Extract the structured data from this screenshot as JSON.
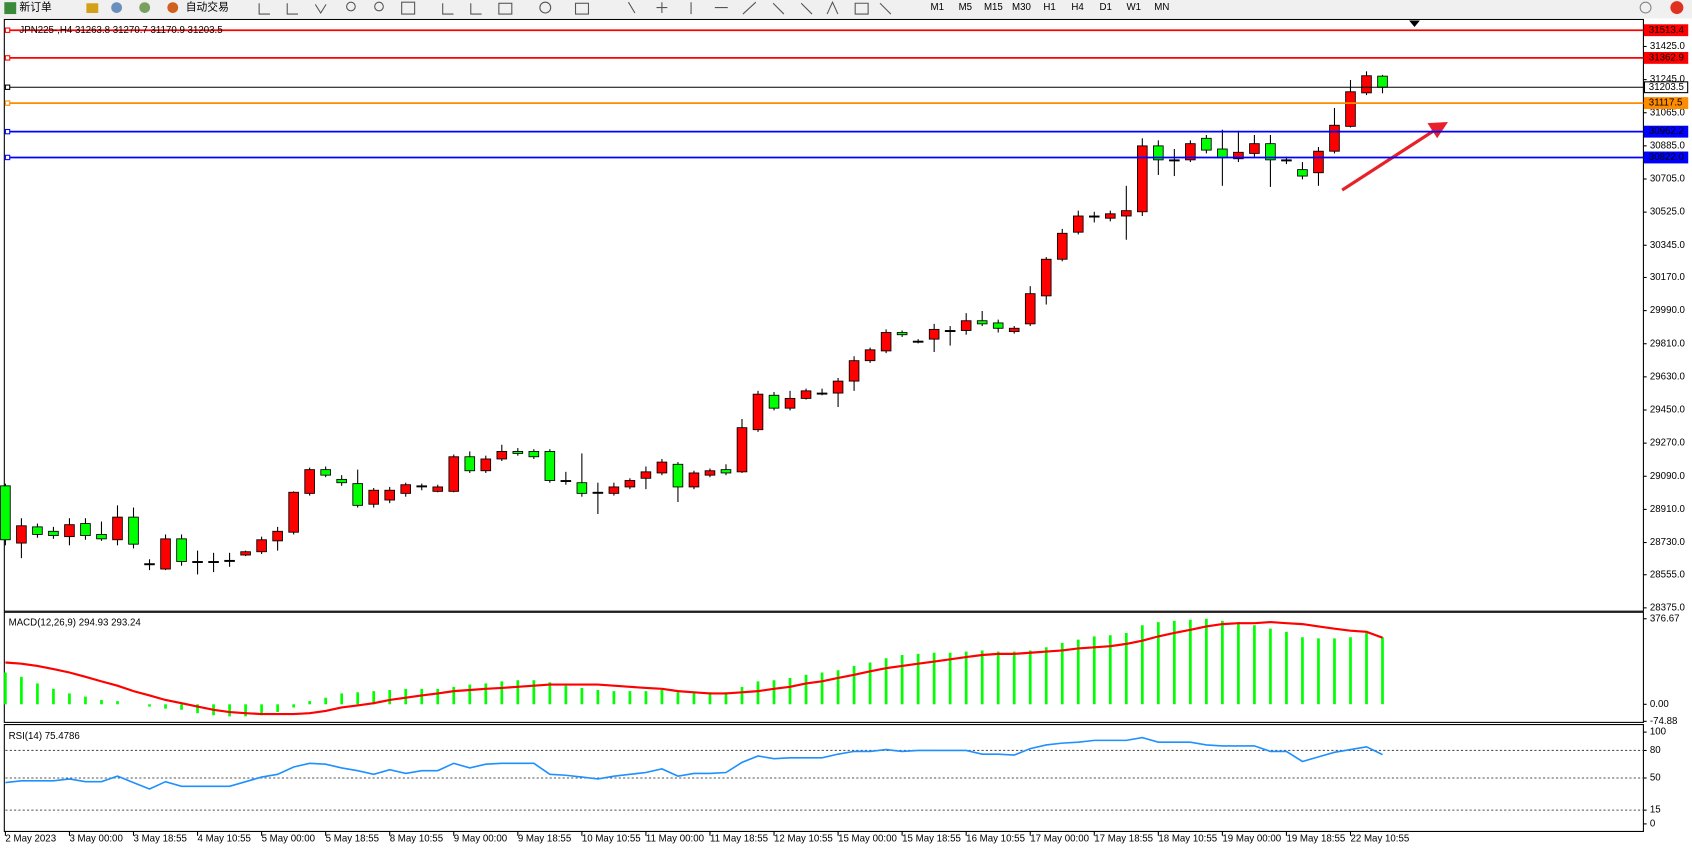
{
  "toolbar": {
    "buttons": [
      "新订单",
      "自动交易"
    ],
    "timeframes": [
      "M1",
      "M5",
      "M15",
      "M30",
      "H1",
      "H4",
      "D1",
      "W1",
      "MN"
    ]
  },
  "chart_data": [
    {
      "type": "candlestick",
      "title": "JPN225-,H4  31263.8 31270.7 31170.9 31203.5",
      "categories": [
        "2 May 2023",
        null,
        null,
        null,
        "3 May 00:00",
        null,
        null,
        null,
        "3 May 18:55",
        null,
        null,
        null,
        "4 May 10:55",
        null,
        null,
        null,
        "5 May 00:00",
        null,
        null,
        null,
        "5 May 18:55",
        null,
        null,
        null,
        "8 May 10:55",
        null,
        null,
        null,
        "9 May 00:00",
        null,
        null,
        null,
        "9 May 18:55",
        null,
        null,
        null,
        "10 May 10:55",
        null,
        null,
        null,
        "11 May 00:00",
        null,
        null,
        null,
        "11 May 18:55",
        null,
        null,
        null,
        "12 May 10:55",
        null,
        null,
        null,
        "15 May 00:00",
        null,
        null,
        null,
        "15 May 18:55",
        null,
        null,
        null,
        "16 May 10:55",
        null,
        null,
        null,
        "17 May 00:00",
        null,
        null,
        null,
        "17 May 18:55",
        null,
        null,
        null,
        "18 May 10:55",
        null,
        null,
        null,
        "19 May 00:00",
        null,
        null,
        null,
        "19 May 18:55",
        null,
        null,
        null,
        "22 May 10:55",
        null,
        null
      ],
      "open": [
        29038,
        28727,
        28815,
        28791,
        28762,
        28833,
        28774,
        28745,
        28868,
        28615,
        28586,
        28750,
        28627,
        28627,
        28633,
        28662,
        28680,
        28739,
        28786,
        28997,
        29126,
        29073,
        29050,
        28938,
        28961,
        28997,
        29038,
        29008,
        29008,
        29196,
        29120,
        29184,
        29225,
        29225,
        29225,
        29067,
        29055,
        29003,
        28997,
        29032,
        29079,
        29108,
        29155,
        29032,
        29096,
        29126,
        29114,
        29343,
        29530,
        29460,
        29513,
        29542,
        29542,
        29607,
        29718,
        29771,
        29871,
        29824,
        29835,
        29882,
        29882,
        29935,
        29923,
        29876,
        29918,
        30070,
        30269,
        30416,
        30504,
        30492,
        30504,
        30527,
        30885,
        30809,
        30809,
        30926,
        30868,
        30815,
        30844,
        30897,
        30809,
        30756,
        30739,
        30856,
        30991,
        31173,
        31263.8
      ],
      "high": [
        29050,
        28862,
        28833,
        28815,
        28862,
        28862,
        28844,
        28932,
        28920,
        28639,
        28774,
        28774,
        28686,
        28674,
        28674,
        28686,
        28762,
        28815,
        29008,
        29137,
        29143,
        29096,
        29126,
        29026,
        29032,
        29055,
        29050,
        29044,
        29208,
        29225,
        29202,
        29261,
        29243,
        29237,
        29237,
        29114,
        29214,
        29055,
        29055,
        29079,
        29143,
        29184,
        29167,
        29120,
        29132,
        29155,
        29401,
        29554,
        29548,
        29554,
        29566,
        29566,
        29624,
        29742,
        29789,
        29888,
        29882,
        29835,
        29918,
        29906,
        29976,
        29988,
        29941,
        29906,
        30123,
        30281,
        30434,
        30533,
        30527,
        30533,
        30668,
        30926,
        30915,
        30868,
        30915,
        30944,
        30973,
        30967,
        30944,
        30944,
        30827,
        30797,
        30879,
        31091,
        31243,
        31290,
        31270.7
      ],
      "low": [
        28715,
        28645,
        28756,
        28750,
        28715,
        28745,
        28739,
        28715,
        28698,
        28580,
        28580,
        28604,
        28557,
        28569,
        28598,
        28656,
        28668,
        28686,
        28774,
        28985,
        29085,
        29038,
        28920,
        28920,
        28944,
        28979,
        29014,
        29003,
        29003,
        29108,
        29108,
        29173,
        29202,
        29184,
        29055,
        29044,
        28979,
        28885,
        28985,
        29020,
        29020,
        29096,
        28950,
        29020,
        29085,
        29096,
        29108,
        29331,
        29448,
        29448,
        29507,
        29530,
        29466,
        29554,
        29706,
        29759,
        29847,
        29812,
        29765,
        29800,
        29859,
        29906,
        29871,
        29865,
        29906,
        30023,
        30258,
        30404,
        30469,
        30475,
        30375,
        30504,
        30727,
        30721,
        30797,
        30844,
        30668,
        30797,
        30827,
        30662,
        30786,
        30703,
        30668,
        30844,
        30985,
        31161,
        31170.9
      ],
      "close": [
        28745,
        28821,
        28774,
        28768,
        28827,
        28768,
        28750,
        28868,
        28721,
        28615,
        28750,
        28627,
        28627,
        28627,
        28633,
        28680,
        28745,
        28791,
        29003,
        29126,
        29096,
        29055,
        28932,
        29014,
        29014,
        29044,
        29038,
        29032,
        29196,
        29120,
        29184,
        29225,
        29214,
        29196,
        29067,
        29067,
        28997,
        29003,
        29032,
        29067,
        29114,
        29167,
        29032,
        29108,
        29120,
        29108,
        29354,
        29536,
        29460,
        29513,
        29554,
        29542,
        29607,
        29718,
        29777,
        29871,
        29859,
        29824,
        29888,
        29882,
        29935,
        29918,
        29894,
        29894,
        30082,
        30269,
        30410,
        30504,
        30504,
        30516,
        30533,
        30885,
        30809,
        30809,
        30897,
        30862,
        30821,
        30850,
        30897,
        30809,
        30809,
        30721,
        30856,
        30997,
        31179,
        31266,
        31203.5
      ],
      "up_color": "#ff0000",
      "down_color": "#00ff00",
      "ylim": [
        28357,
        31560
      ],
      "yticks": [
        {
          "value": 28375,
          "label": "28375.0"
        },
        {
          "value": 28555,
          "label": "28555.0"
        },
        {
          "value": 28730,
          "label": "28730.0"
        },
        {
          "value": 28910,
          "label": "28910.0"
        },
        {
          "value": 29090,
          "label": "29090.0"
        },
        {
          "value": 29270,
          "label": "29270.0"
        },
        {
          "value": 29450,
          "label": "29450.0"
        },
        {
          "value": 29630,
          "label": "29630.0"
        },
        {
          "value": 29810,
          "label": "29810.0"
        },
        {
          "value": 29990,
          "label": "29990.0"
        },
        {
          "value": 30170,
          "label": "30170.0"
        },
        {
          "value": 30345,
          "label": "30345.0"
        },
        {
          "value": 30525,
          "label": "30525.0"
        },
        {
          "value": 30705,
          "label": "30705.0"
        },
        {
          "value": 30885,
          "label": "30885.0"
        },
        {
          "value": 31065,
          "label": "31065.0"
        },
        {
          "value": 31245,
          "label": "31245.0"
        },
        {
          "value": 31425,
          "label": "31425.0"
        }
      ],
      "price_lines": [
        {
          "value": 31513.4,
          "color": "#ff0000"
        },
        {
          "value": 31362.9,
          "color": "#ff0000"
        },
        {
          "value": 31203.5,
          "color": "#000000"
        },
        {
          "value": 31117.5,
          "color": "#ff8c00"
        },
        {
          "value": 30962.2,
          "color": "#0000ff"
        },
        {
          "value": 30822,
          "label": "30822.0",
          "color": "#0000ff"
        }
      ]
    },
    {
      "type": "macd",
      "title": "MACD(12,26,9) 294.93 293.24",
      "histogram": {
        "color": "#00ff00",
        "values": [
          140,
          121,
          92,
          68,
          48,
          34,
          19,
          14,
          0,
          -10,
          -19,
          -24,
          -39,
          -48,
          -53,
          -53,
          -48,
          -34,
          -14,
          14,
          29,
          48,
          53,
          58,
          63,
          68,
          68,
          68,
          77,
          87,
          92,
          101,
          106,
          106,
          97,
          82,
          72,
          63,
          58,
          58,
          58,
          63,
          53,
          53,
          53,
          53,
          77,
          101,
          106,
          116,
          130,
          140,
          150,
          169,
          184,
          203,
          217,
          222,
          227,
          227,
          232,
          237,
          232,
          232,
          237,
          251,
          270,
          285,
          299,
          304,
          314,
          348,
          362,
          367,
          372,
          376.67,
          367,
          362,
          348,
          333,
          319,
          295,
          290,
          290,
          295,
          314,
          294.93
        ]
      },
      "signal": {
        "color": "#ff0000",
        "values": [
          184,
          179,
          169,
          155,
          140,
          121,
          101,
          82,
          58,
          39,
          19,
          5,
          -10,
          -24,
          -34,
          -39,
          -43,
          -43,
          -43,
          -39,
          -29,
          -14,
          -5,
          5,
          19,
          29,
          39,
          48,
          58,
          63,
          68,
          72,
          77,
          82,
          87,
          87,
          87,
          87,
          82,
          77,
          72,
          68,
          58,
          53,
          48,
          48,
          53,
          58,
          68,
          77,
          92,
          101,
          116,
          130,
          145,
          159,
          169,
          179,
          188,
          198,
          208,
          217,
          222,
          222,
          227,
          232,
          237,
          246,
          251,
          256,
          266,
          280,
          299,
          314,
          328,
          343,
          353,
          357,
          357,
          362,
          357,
          353,
          343,
          333,
          324,
          319,
          293.24
        ]
      },
      "ylim": [
        -74.88,
        376.67
      ],
      "yticks": [
        376.67,
        {
          "value": 0,
          "label": "0.00"
        },
        -74.88
      ]
    },
    {
      "type": "line",
      "title": "RSI(14) 75.4786",
      "color": "#1e90ff",
      "values": [
        45,
        47,
        47,
        47,
        49,
        46,
        46,
        52,
        45,
        38,
        46,
        41,
        41,
        41,
        41,
        46,
        51,
        54,
        62,
        66,
        65,
        61,
        58,
        54,
        59,
        55,
        58,
        58,
        66,
        61,
        65,
        66,
        66,
        66,
        54,
        53,
        51,
        49,
        52,
        54,
        56,
        60,
        52,
        55,
        55,
        56,
        67,
        74,
        71,
        72,
        72,
        72,
        76,
        79,
        79,
        81,
        79,
        80,
        80,
        80,
        80,
        76,
        76,
        75,
        82,
        86,
        88,
        89,
        91,
        91,
        91,
        94,
        89,
        89,
        89,
        86,
        85,
        85,
        85,
        79,
        79,
        68,
        73,
        78,
        81,
        84,
        75.4786
      ],
      "ylim": [
        0,
        100
      ],
      "yticks": [
        100,
        80,
        50,
        15,
        0
      ],
      "dashed_levels": true
    }
  ]
}
